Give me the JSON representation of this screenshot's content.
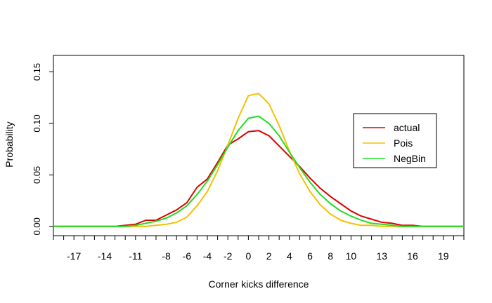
{
  "chart_data": {
    "type": "line",
    "title": "",
    "xlabel": "Corner kicks difference",
    "ylabel": "Probability",
    "xlim": [
      -19,
      21
    ],
    "ylim": [
      -0.009,
      0.166
    ],
    "grid": false,
    "legend_position": "right",
    "x": [
      -19,
      -18,
      -17,
      -16,
      -15,
      -14,
      -13,
      -12,
      -11,
      -10,
      -9,
      -8,
      -7,
      -6,
      -5,
      -4,
      -3,
      -2,
      -1,
      0,
      1,
      2,
      3,
      4,
      5,
      6,
      7,
      8,
      9,
      10,
      11,
      12,
      13,
      14,
      15,
      16,
      17,
      18,
      19,
      20,
      21
    ],
    "x_tick_labels": [
      {
        "value": -17,
        "label": "-17"
      },
      {
        "value": -14,
        "label": "-14"
      },
      {
        "value": -11,
        "label": "-11"
      },
      {
        "value": -8,
        "label": "-8"
      },
      {
        "value": -6,
        "label": "-6"
      },
      {
        "value": -4,
        "label": "-4"
      },
      {
        "value": -2,
        "label": "-2"
      },
      {
        "value": 0,
        "label": "0"
      },
      {
        "value": 2,
        "label": "2"
      },
      {
        "value": 4,
        "label": "4"
      },
      {
        "value": 6,
        "label": "6"
      },
      {
        "value": 8,
        "label": "8"
      },
      {
        "value": 10,
        "label": "10"
      },
      {
        "value": 13,
        "label": "13"
      },
      {
        "value": 16,
        "label": "16"
      },
      {
        "value": 19,
        "label": "19"
      }
    ],
    "y_ticks": [
      {
        "value": 0.0,
        "label": "0.00"
      },
      {
        "value": 0.05,
        "label": "0.05"
      },
      {
        "value": 0.1,
        "label": "0.10"
      },
      {
        "value": 0.15,
        "label": "0.15"
      }
    ],
    "series": [
      {
        "name": "actual",
        "color": "#dd0000",
        "values": [
          0,
          0,
          0,
          0,
          0,
          0,
          0,
          0.001,
          0.002,
          0.006,
          0.006,
          0.011,
          0.016,
          0.023,
          0.038,
          0.046,
          0.062,
          0.079,
          0.085,
          0.092,
          0.093,
          0.088,
          0.078,
          0.068,
          0.058,
          0.047,
          0.037,
          0.029,
          0.022,
          0.015,
          0.01,
          0.007,
          0.004,
          0.003,
          0.001,
          0.001,
          0,
          0,
          0,
          0,
          0
        ]
      },
      {
        "name": "Pois",
        "color": "#f5c000",
        "values": [
          0,
          0,
          0,
          0,
          0,
          0,
          0,
          0,
          0,
          0,
          0.001,
          0.002,
          0.004,
          0.009,
          0.02,
          0.034,
          0.054,
          0.079,
          0.105,
          0.127,
          0.129,
          0.119,
          0.098,
          0.073,
          0.051,
          0.034,
          0.021,
          0.012,
          0.006,
          0.003,
          0.001,
          0.001,
          0,
          0,
          0,
          0,
          0,
          0,
          0,
          0,
          0
        ]
      },
      {
        "name": "NegBin",
        "color": "#22dd22",
        "values": [
          0,
          0,
          0,
          0,
          0,
          0,
          0,
          0,
          0.001,
          0.003,
          0.005,
          0.008,
          0.013,
          0.02,
          0.031,
          0.044,
          0.06,
          0.077,
          0.093,
          0.105,
          0.107,
          0.1,
          0.088,
          0.072,
          0.057,
          0.043,
          0.031,
          0.022,
          0.015,
          0.01,
          0.006,
          0.003,
          0.002,
          0.001,
          0,
          0,
          0,
          0,
          0,
          0,
          0
        ]
      }
    ]
  }
}
